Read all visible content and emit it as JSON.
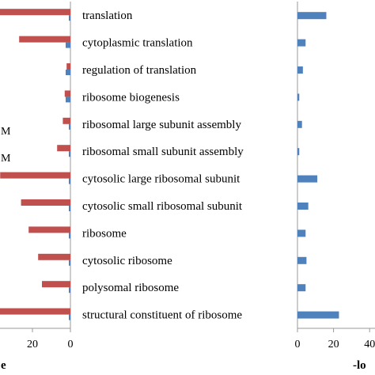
{
  "chart_data": {
    "type": "bar",
    "orientation": "horizontal",
    "categories": [
      "translation",
      "cytoplasmic translation",
      "regulation of translation",
      "ribosome biogenesis",
      "ribosomal large subunit assembly",
      "ribosomal small subunit assembly",
      "cytosolic large ribosomal subunit",
      "cytosolic small ribosomal subunit",
      "ribosome",
      "cytosolic ribosome",
      "polysomal ribosome",
      "structural constituent of ribosome"
    ],
    "panels": [
      {
        "x_reversed": true,
        "xlim": [
          0,
          40
        ],
        "xticks": [
          0,
          20
        ],
        "xtick_labels_visible": [
          "0",
          "20"
        ],
        "series": [
          {
            "color": "#c0504d",
            "values": [
              40,
              27,
              2,
              3,
              4,
              7,
              37,
              26,
              22,
              17,
              15,
              38
            ]
          },
          {
            "color": "#4f81bd",
            "values": [
              0.2,
              2.5,
              2.5,
              2.5,
              0.2,
              0.2,
              0.2,
              0.2,
              0.2,
              0.2,
              0.2,
              0.2
            ]
          }
        ]
      },
      {
        "xlim": [
          0,
          40
        ],
        "xticks": [
          0,
          20,
          40
        ],
        "xtick_labels_visible": [
          "0",
          "20",
          "40"
        ],
        "series": [
          {
            "color": "#4f81bd",
            "values": [
              16,
              4.5,
              3,
              1,
              2.5,
              1,
              11,
              6,
              4.5,
              5,
              4.5,
              23
            ]
          }
        ]
      }
    ],
    "left_edge_fragments": [
      "M",
      "M"
    ],
    "left_axis_label_fragment": "e",
    "right_axis_label_fragment": "-lo"
  }
}
